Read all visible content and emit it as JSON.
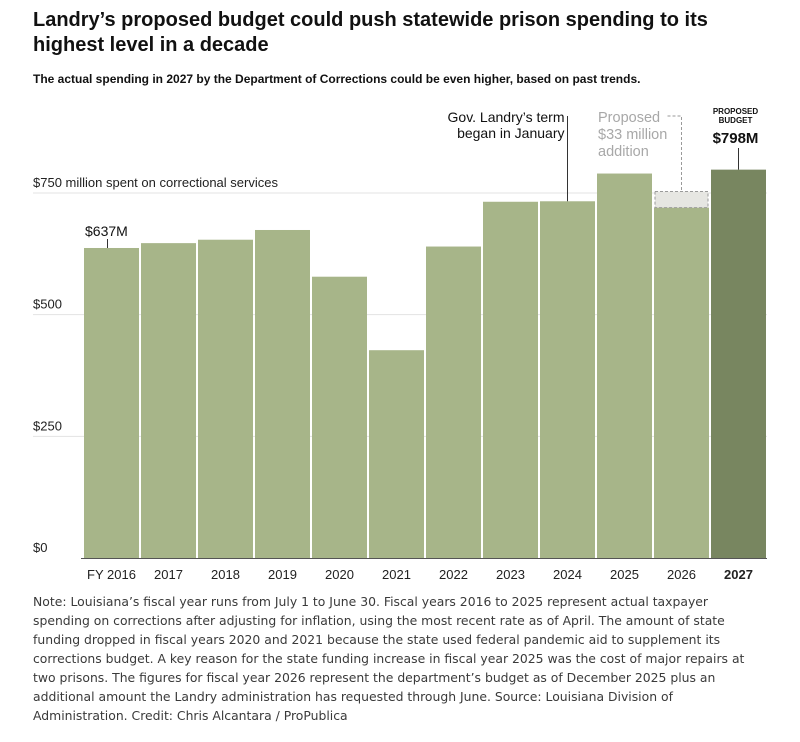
{
  "header": {
    "title": "Landry’s proposed budget could push statewide prison spending to its highest level in a decade",
    "subtitle": "The actual spending in 2027 by the Department of Corrections could be even higher, based on past trends."
  },
  "chart_data": {
    "type": "bar",
    "categories": [
      "FY 2016",
      "2017",
      "2018",
      "2019",
      "2020",
      "2021",
      "2022",
      "2023",
      "2024",
      "2025",
      "2026",
      "2027"
    ],
    "values": [
      637,
      647,
      654,
      674,
      578,
      427,
      640,
      732,
      733,
      790,
      720,
      798
    ],
    "proposed_addition": {
      "category": "2026",
      "value": 33
    },
    "highlight_category": "2027",
    "y_ticks": [
      {
        "value": 0,
        "label": "$0"
      },
      {
        "value": 250,
        "label": "$250"
      },
      {
        "value": 500,
        "label": "$500"
      },
      {
        "value": 750,
        "label": "$750 million spent on correctional services"
      }
    ],
    "ylim": [
      0,
      750
    ],
    "grid": true,
    "xlabel": "",
    "ylabel": "",
    "colors": {
      "bar": "#a7b589",
      "highlight": "#788660",
      "addition_fill": "#e6e6e2",
      "addition_stroke": "#9a9a9a",
      "grid": "#e3e3e3",
      "axis": "#555555"
    },
    "annotations": {
      "first_bar_label": "$637M",
      "term_label": [
        "Gov. Landry’s term",
        "began in January"
      ],
      "addition_label": [
        "Proposed",
        "$33 million",
        "addition"
      ],
      "proposed_caption": [
        "PROPOSED",
        "BUDGET"
      ],
      "proposed_value_label": "$798M"
    }
  },
  "note": "Note: Louisiana’s fiscal year runs from July 1 to June 30. Fiscal years 2016 to 2025 represent actual taxpayer spending on corrections after adjusting for inflation, using the most recent rate as of April. The amount of state funding dropped in fiscal years 2020 and 2021 because the state used federal pandemic aid to supplement its corrections budget. A key reason for the state funding increase in fiscal year 2025 was the cost of major repairs at two prisons. The figures for fiscal year 2026 represent the department’s budget as of December 2025 plus an additional amount the Landry administration has requested through June. Source: Louisiana Division of Administration. Credit: Chris Alcantara / ProPublica"
}
